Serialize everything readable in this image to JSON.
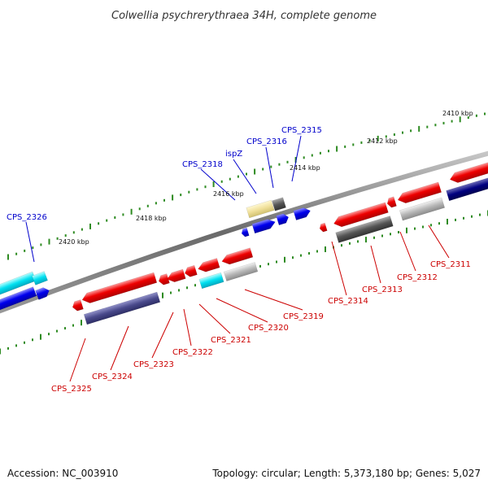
{
  "map": {
    "title": "Colwellia psychrerythraea 34H, complete genome",
    "accession_text": "Accession: NC_003910",
    "summary_text": "Topology: circular; Length: 5,373,180 bp; Genes: 5,027",
    "colors": {
      "backbone": "#888888",
      "tick": "#2e8b22",
      "forward_label": "#0000cc",
      "reverse_label": "#cc0000",
      "red": "#ee0000",
      "blue": "#0000ee",
      "cyan": "#00e0f0",
      "navy": "#000080",
      "slate": "#4a4a8c",
      "gray": "#555555",
      "lightgray": "#b8b8b8",
      "khaki": "#f0e09a"
    },
    "position_labels": [
      {
        "id": "2410",
        "text": "2410 kbp"
      },
      {
        "id": "2412",
        "text": "2412 kbp"
      },
      {
        "id": "2414",
        "text": "2414 kbp"
      },
      {
        "id": "2416",
        "text": "2416 kbp"
      },
      {
        "id": "2418",
        "text": "2418 kbp"
      },
      {
        "id": "2420",
        "text": "2420 kbp"
      }
    ],
    "forward_labels": [
      {
        "id": "cps-2326",
        "text": "CPS_2326"
      },
      {
        "id": "cps-2318",
        "text": "CPS_2318"
      },
      {
        "id": "ispz",
        "text": "ispZ"
      },
      {
        "id": "cps-2316",
        "text": "CPS_2316"
      },
      {
        "id": "cps-2315",
        "text": "CPS_2315"
      }
    ],
    "reverse_labels": [
      {
        "id": "cps-2325",
        "text": "CPS_2325"
      },
      {
        "id": "cps-2324",
        "text": "CPS_2324"
      },
      {
        "id": "cps-2323",
        "text": "CPS_2323"
      },
      {
        "id": "cps-2322",
        "text": "CPS_2322"
      },
      {
        "id": "cps-2321",
        "text": "CPS_2321"
      },
      {
        "id": "cps-2320",
        "text": "CPS_2320"
      },
      {
        "id": "cps-2319",
        "text": "CPS_2319"
      },
      {
        "id": "cps-2314",
        "text": "CPS_2314"
      },
      {
        "id": "cps-2313",
        "text": "CPS_2313"
      },
      {
        "id": "cps-2312",
        "text": "CPS_2312"
      },
      {
        "id": "cps-2311",
        "text": "CPS_2311"
      }
    ]
  }
}
